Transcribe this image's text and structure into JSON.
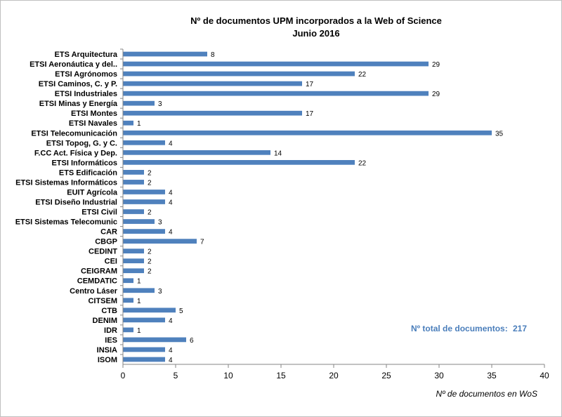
{
  "chart_data": {
    "type": "bar",
    "orientation": "horizontal",
    "title": "Nº de documentos UPM incorporados  a la Web of Science",
    "subtitle": "Junio 2016",
    "xlabel": "Nº de documentos en WoS",
    "ylabel": "",
    "xlim": [
      0,
      40
    ],
    "xticks": [
      0,
      5,
      10,
      15,
      20,
      25,
      30,
      35,
      40
    ],
    "grid": false,
    "bar_color": "#4f81bd",
    "annotation": {
      "label": "Nº total de documentos:",
      "value": "217",
      "color": "#4a7ebb"
    },
    "categories": [
      "ETS Arquitectura",
      "ETSI Aeronáutica y del..",
      "ETSI Agrónomos",
      "ETSI Caminos, C. y P.",
      "ETSI Industriales",
      "ETSI Minas y Energía",
      "ETSI Montes",
      "ETSI Navales",
      "ETSI Telecomunicación",
      "ETSI Topog, G. y C.",
      "F.CC Act. Física y Dep.",
      "ETSI Informáticos",
      "ETS Edificación",
      "ETSI Sistemas Informáticos",
      "EUIT Agrícola",
      "ETSI Diseño Industrial",
      "ETSI Civil",
      "ETSI Sistemas Telecomunic",
      "CAR",
      "CBGP",
      "CEDINT",
      "CEI",
      "CEIGRAM",
      "CEMDATIC",
      "Centro Láser",
      "CITSEM",
      "CTB",
      "DENIM",
      "IDR",
      "IES",
      "INSIA",
      "ISOM"
    ],
    "values": [
      8,
      29,
      22,
      17,
      29,
      3,
      17,
      1,
      35,
      4,
      14,
      22,
      2,
      2,
      4,
      4,
      2,
      3,
      4,
      7,
      2,
      2,
      2,
      1,
      3,
      1,
      5,
      4,
      1,
      6,
      4,
      4
    ]
  }
}
